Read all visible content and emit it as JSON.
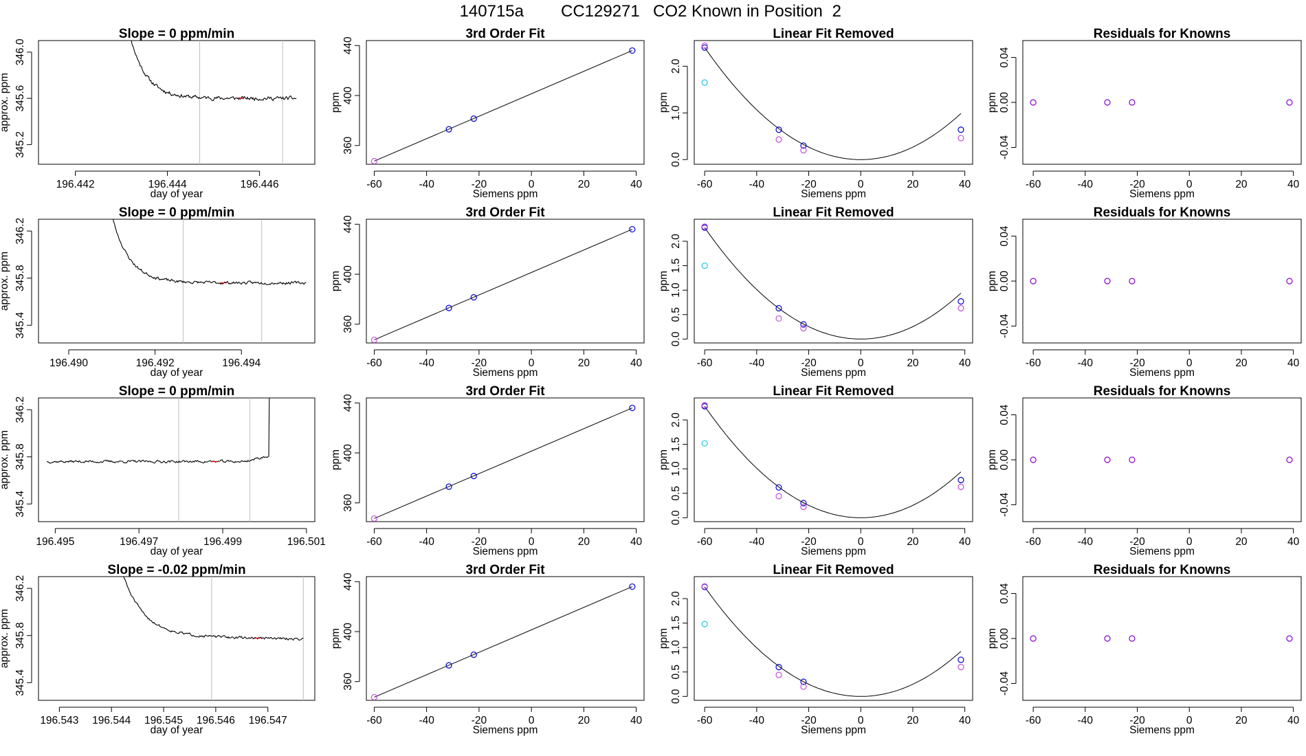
{
  "figure": {
    "run_id": "140715a",
    "cylinder_id": "CC129271",
    "description": "CO2 Known in Position",
    "position": "2"
  },
  "colors": {
    "axis": "#000000",
    "trace": "#000000",
    "marker_line": "#bebebe",
    "highlight": "#ff0000",
    "fit_point": "#0000cd",
    "knowns": "#c34fd8",
    "baseline_point": "#1ec8e6",
    "residual_point": "#8a00c8"
  },
  "chart_data": [
    {
      "type": "line",
      "id": "trace1",
      "title": "Slope =  0  ppm/min",
      "xlabel": "day of year",
      "ylabel": "approx. ppm",
      "xlim": [
        196.4412,
        196.4472
      ],
      "ylim": [
        345.03,
        346.1
      ],
      "xticks": [
        "196.442",
        "196.444",
        "196.446"
      ],
      "yticks": [
        "345.2",
        "345.6",
        "346.0"
      ],
      "vlines": [
        196.4447,
        196.4465
      ],
      "shape": {
        "start": 196.4431,
        "end": 196.4468,
        "v0": 346.3,
        "plateau": 345.6,
        "tau": 0.00035,
        "rise_at": 196.44682,
        "rise_to": 346.5,
        "noise": 0.016,
        "seed": 11,
        "n": 240
      }
    },
    {
      "type": "line",
      "id": "trace2",
      "title": "Slope =  0  ppm/min",
      "xlabel": "day of year",
      "ylabel": "approx. ppm",
      "xlim": [
        196.4893,
        196.4957
      ],
      "ylim": [
        345.25,
        346.3
      ],
      "xticks": [
        "196.490",
        "196.492",
        "196.494"
      ],
      "yticks": [
        "345.4",
        "345.8",
        "346.2"
      ],
      "vlines": [
        196.49265,
        196.49447
      ],
      "shape": {
        "start": 196.4909,
        "end": 196.4955,
        "v0": 346.5,
        "plateau": 345.76,
        "tau": 0.0004,
        "noise": 0.012,
        "seed": 23,
        "n": 260
      }
    },
    {
      "type": "line",
      "id": "trace3",
      "title": "Slope =  0  ppm/min",
      "xlabel": "day of year",
      "ylabel": "approx. ppm",
      "xlim": [
        196.4946,
        196.5012
      ],
      "ylim": [
        345.25,
        346.3
      ],
      "xticks": [
        "196.495",
        "196.497",
        "196.499",
        "196.501"
      ],
      "yticks": [
        "345.4",
        "345.8",
        "346.2"
      ],
      "vlines": [
        196.49795,
        196.49965
      ],
      "shape": {
        "start": 196.4948,
        "end": 196.50016,
        "v0": 345.76,
        "plateau": 345.76,
        "tau": 0.0004,
        "rise_at": 196.50012,
        "rise_to": 346.6,
        "bump": 0.05,
        "noise": 0.011,
        "seed": 37,
        "n": 270
      }
    },
    {
      "type": "line",
      "id": "trace4",
      "title": "Slope =  -0.02  ppm/min",
      "xlabel": "day of year",
      "ylabel": "approx. ppm",
      "xlim": [
        196.5426,
        196.5479
      ],
      "ylim": [
        345.25,
        346.3
      ],
      "xticks": [
        "196.543",
        "196.544",
        "196.545",
        "196.546",
        "196.547"
      ],
      "yticks": [
        "345.4",
        "345.8",
        "346.2"
      ],
      "vlines": [
        196.54592,
        196.54768
      ],
      "shape": {
        "start": 196.5441,
        "end": 196.54768,
        "v0": 346.5,
        "plateau": 345.8,
        "tau": 0.0004,
        "drift": -0.03,
        "noise": 0.011,
        "seed": 51,
        "n": 220
      }
    },
    {
      "type": "scatter",
      "id": "fit",
      "title": "3rd Order Fit",
      "xlabel": "Siemens ppm",
      "ylabel": "ppm",
      "xlim": [
        -63,
        43
      ],
      "ylim": [
        345,
        444
      ],
      "xticks": [
        -60,
        -40,
        -20,
        0,
        20,
        40
      ],
      "yticks": [
        360,
        400,
        440
      ],
      "points_x": [
        -60,
        -31.5,
        -22,
        38.5
      ],
      "points_y": [
        347.5,
        373,
        381.5,
        436
      ]
    },
    {
      "type": "scatter",
      "id": "linrem_row1",
      "title": "Linear Fit Removed",
      "xlabel": "Siemens ppm",
      "ylabel": "ppm",
      "xlim": [
        -64,
        43
      ],
      "ylim": [
        -0.1,
        2.55
      ],
      "xticks": [
        -60,
        -40,
        -20,
        0,
        20,
        40
      ],
      "yticks": [
        0.0,
        1.0,
        2.0
      ],
      "ytick_labels": [
        "0.0",
        "1.0",
        "2.0"
      ],
      "curve": {
        "vertex_x": 0,
        "a": 0.000667
      },
      "series": [
        {
          "name": "fit",
          "x": [
            -60,
            -31.5,
            -22,
            38.5
          ],
          "y": [
            2.4,
            0.64,
            0.3,
            0.64
          ]
        },
        {
          "name": "knowns",
          "x": [
            -60,
            -31.5,
            -22,
            38.5
          ],
          "y": [
            2.44,
            0.43,
            0.2,
            0.46
          ]
        },
        {
          "name": "baseline",
          "x": [
            -60
          ],
          "y": [
            1.65
          ]
        }
      ]
    },
    {
      "type": "scatter",
      "id": "linrem_row2",
      "title": "Linear Fit Removed",
      "xlabel": "Siemens ppm",
      "ylabel": "ppm",
      "xlim": [
        -64,
        43
      ],
      "ylim": [
        -0.08,
        2.45
      ],
      "xticks": [
        -60,
        -40,
        -20,
        0,
        20,
        40
      ],
      "yticks": [
        0.0,
        0.5,
        1.0,
        1.5,
        2.0
      ],
      "ytick_labels": [
        "0.0",
        "0.5",
        "1.0",
        "1.5",
        "2.0"
      ],
      "curve": {
        "vertex_x": 0,
        "a": 0.000633
      },
      "series": [
        {
          "name": "fit",
          "x": [
            -60,
            -31.5,
            -22,
            38.5
          ],
          "y": [
            2.28,
            0.63,
            0.3,
            0.77
          ]
        },
        {
          "name": "knowns",
          "x": [
            -60,
            -31.5,
            -22,
            38.5
          ],
          "y": [
            2.3,
            0.42,
            0.22,
            0.63
          ]
        },
        {
          "name": "baseline",
          "x": [
            -60
          ],
          "y": [
            1.5
          ]
        }
      ]
    },
    {
      "type": "scatter",
      "id": "linrem_row3",
      "title": "Linear Fit Removed",
      "xlabel": "Siemens ppm",
      "ylabel": "ppm",
      "xlim": [
        -64,
        43
      ],
      "ylim": [
        -0.08,
        2.45
      ],
      "xticks": [
        -60,
        -40,
        -20,
        0,
        20,
        40
      ],
      "yticks": [
        0.0,
        0.5,
        1.0,
        1.5,
        2.0
      ],
      "ytick_labels": [
        "0.0",
        "0.5",
        "1.0",
        "1.5",
        "2.0"
      ],
      "curve": {
        "vertex_x": 0,
        "a": 0.000633
      },
      "series": [
        {
          "name": "fit",
          "x": [
            -60,
            -31.5,
            -22,
            38.5
          ],
          "y": [
            2.28,
            0.62,
            0.3,
            0.77
          ]
        },
        {
          "name": "knowns",
          "x": [
            -60,
            -31.5,
            -22,
            38.5
          ],
          "y": [
            2.3,
            0.44,
            0.22,
            0.63
          ]
        },
        {
          "name": "baseline",
          "x": [
            -60
          ],
          "y": [
            1.52
          ]
        }
      ]
    },
    {
      "type": "scatter",
      "id": "linrem_row4",
      "title": "Linear Fit Removed",
      "xlabel": "Siemens ppm",
      "ylabel": "ppm",
      "xlim": [
        -64,
        43
      ],
      "ylim": [
        -0.08,
        2.45
      ],
      "xticks": [
        -60,
        -40,
        -20,
        0,
        20,
        40
      ],
      "yticks": [
        0.0,
        0.5,
        1.0,
        1.5,
        2.0
      ],
      "ytick_labels": [
        "0.0",
        "0.5",
        "1.0",
        "1.5",
        "2.0"
      ],
      "curve": {
        "vertex_x": 0,
        "a": 0.000622
      },
      "series": [
        {
          "name": "fit",
          "x": [
            -60,
            -31.5,
            -22,
            38.5
          ],
          "y": [
            2.24,
            0.6,
            0.3,
            0.75
          ]
        },
        {
          "name": "knowns",
          "x": [
            -60,
            -31.5,
            -22,
            38.5
          ],
          "y": [
            2.25,
            0.44,
            0.2,
            0.6
          ]
        },
        {
          "name": "baseline",
          "x": [
            -60
          ],
          "y": [
            1.48
          ]
        }
      ]
    },
    {
      "type": "scatter",
      "id": "residuals",
      "title": "Residuals for Knowns",
      "xlabel": "Siemens ppm",
      "ylabel": "ppm",
      "xlim": [
        -64,
        43
      ],
      "ylim": [
        -0.055,
        0.055
      ],
      "xticks": [
        -60,
        -40,
        -20,
        0,
        20,
        40
      ],
      "yticks": [
        -0.04,
        0.0,
        0.04
      ],
      "ytick_labels": [
        "-0.04",
        "0.00",
        "0.04"
      ],
      "points_x": [
        -60,
        -31.5,
        -22,
        38.5
      ],
      "points_y": [
        0,
        0,
        0,
        0
      ]
    }
  ]
}
